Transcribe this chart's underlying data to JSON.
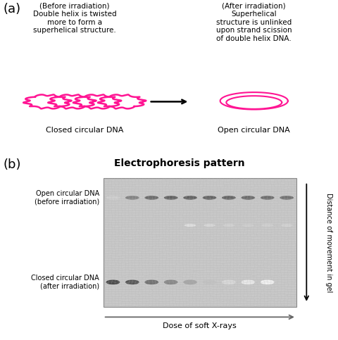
{
  "panel_a_label": "(a)",
  "panel_b_label": "(b)",
  "before_irradiation_text": "(Before irradiation)\nDouble helix is twisted\nmore to form a\nsuperhelical structure.",
  "after_irradiation_text": "(After irradiation)\nSuperhelical\nstructure is unlinked\nupon strand scission\nof double helix DNA.",
  "closed_circular_dna": "Closed circular DNA",
  "open_circular_dna": "Open circular DNA",
  "electrophoresis_title": "Electrophoresis pattern",
  "open_circular_label": "Open circular DNA\n(before irradiation)",
  "closed_circular_label": "Closed circular DNA\n(after irradiation)",
  "dose_label": "Dose of soft X-rays",
  "distance_label": "Distance of movement in gel",
  "dna_color": "#FF1493",
  "bg_color": "#ffffff",
  "text_color": "#000000",
  "gel_bg": "#cccccc",
  "gel_texture_color": "#b8b8b8",
  "open_band_intensities": [
    0.25,
    0.7,
    0.85,
    0.9,
    0.9,
    0.88,
    0.88,
    0.85,
    0.82,
    0.8
  ],
  "mid_band_intensities": [
    0.0,
    0.0,
    0.0,
    0.0,
    0.15,
    0.22,
    0.28,
    0.32,
    0.3,
    0.28
  ],
  "closed_band_intensities": [
    0.95,
    0.88,
    0.75,
    0.62,
    0.45,
    0.3,
    0.18,
    0.1,
    0.05,
    0.0
  ],
  "n_lanes": 10
}
